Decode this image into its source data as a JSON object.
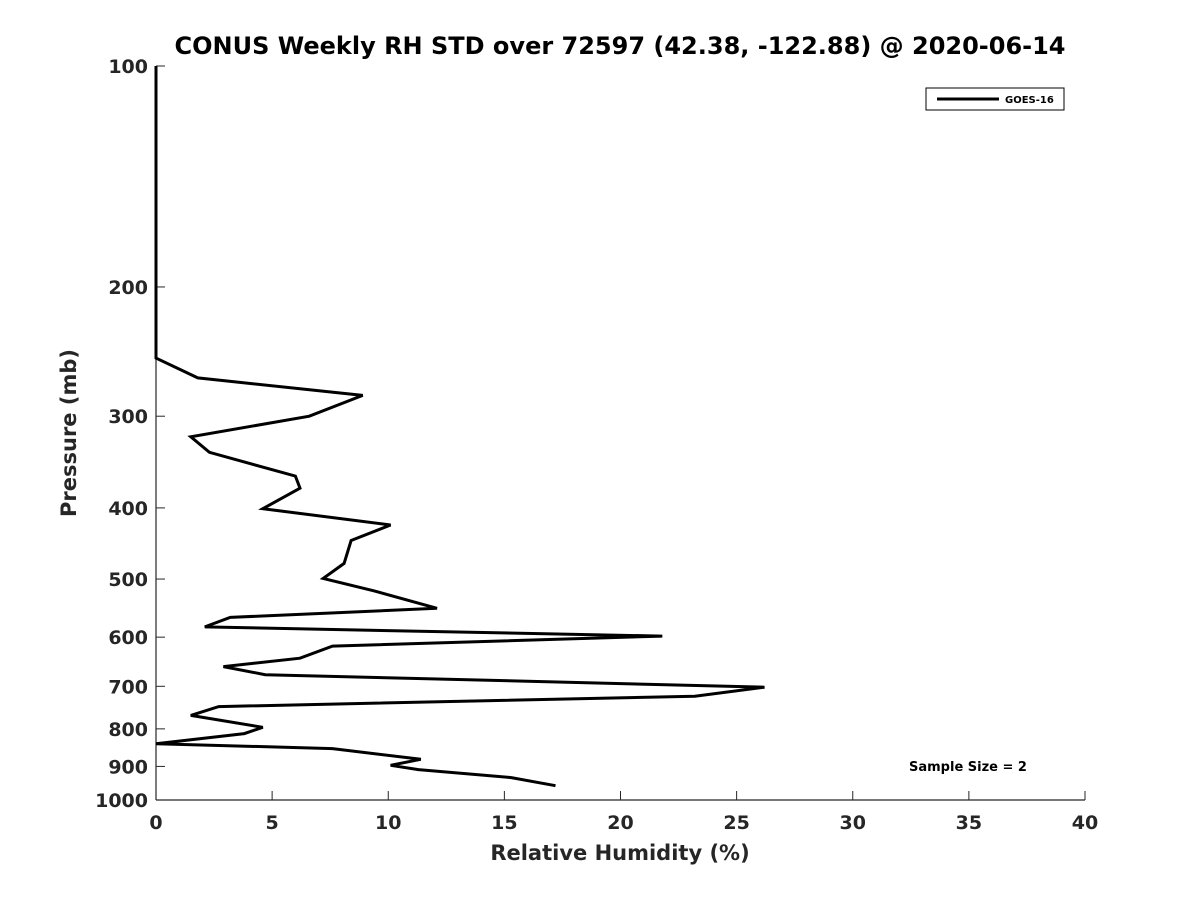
{
  "chart_data": {
    "type": "line",
    "title": "CONUS Weekly RH STD over 72597 (42.38, -122.88) @ 2020-06-14",
    "xlabel": "Relative Humidity (%)",
    "ylabel": "Pressure (mb)",
    "xlim": [
      0,
      40
    ],
    "ylim": [
      100,
      1000
    ],
    "y_scale": "log",
    "y_reversed": true,
    "x_ticks": [
      0,
      5,
      10,
      15,
      20,
      25,
      30,
      35,
      40
    ],
    "y_ticks": [
      100,
      200,
      300,
      400,
      500,
      600,
      700,
      800,
      900,
      1000
    ],
    "grid": false,
    "legend_position": "top-right",
    "series": [
      {
        "name": "GOES-16",
        "color": "#000000",
        "points": [
          {
            "x": 0,
            "y": 100
          },
          {
            "x": 0,
            "y": 150
          },
          {
            "x": 0,
            "y": 200
          },
          {
            "x": 0,
            "y": 250
          },
          {
            "x": 1.8,
            "y": 266
          },
          {
            "x": 8.9,
            "y": 281
          },
          {
            "x": 6.6,
            "y": 300
          },
          {
            "x": 1.5,
            "y": 320
          },
          {
            "x": 2.3,
            "y": 336
          },
          {
            "x": 6.0,
            "y": 362
          },
          {
            "x": 6.2,
            "y": 376
          },
          {
            "x": 4.6,
            "y": 401
          },
          {
            "x": 10.1,
            "y": 422
          },
          {
            "x": 8.4,
            "y": 443
          },
          {
            "x": 8.1,
            "y": 476
          },
          {
            "x": 7.2,
            "y": 499
          },
          {
            "x": 9.4,
            "y": 519
          },
          {
            "x": 12.1,
            "y": 548
          },
          {
            "x": 3.2,
            "y": 564
          },
          {
            "x": 2.1,
            "y": 581
          },
          {
            "x": 21.8,
            "y": 598
          },
          {
            "x": 7.6,
            "y": 617
          },
          {
            "x": 6.2,
            "y": 641
          },
          {
            "x": 2.9,
            "y": 658
          },
          {
            "x": 4.7,
            "y": 675
          },
          {
            "x": 26.2,
            "y": 702
          },
          {
            "x": 23.2,
            "y": 722
          },
          {
            "x": 2.7,
            "y": 746
          },
          {
            "x": 1.5,
            "y": 767
          },
          {
            "x": 4.6,
            "y": 796
          },
          {
            "x": 3.8,
            "y": 812
          },
          {
            "x": 0,
            "y": 838
          },
          {
            "x": 7.6,
            "y": 851
          },
          {
            "x": 11.4,
            "y": 880
          },
          {
            "x": 10.1,
            "y": 897
          },
          {
            "x": 11.3,
            "y": 909
          },
          {
            "x": 15.3,
            "y": 932
          },
          {
            "x": 17.2,
            "y": 956
          }
        ]
      }
    ],
    "annotations": [
      "Sample Size = 2"
    ]
  }
}
